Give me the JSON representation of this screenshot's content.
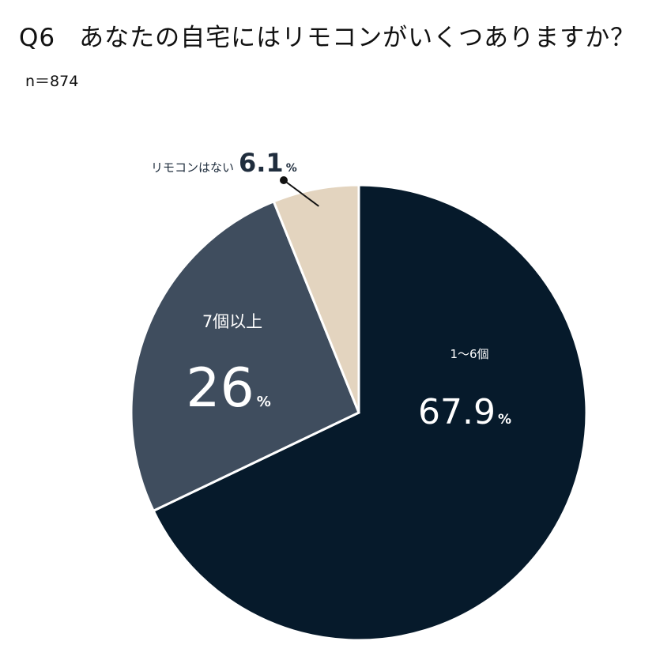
{
  "question": {
    "number": "Q6",
    "text": "あなたの自宅にはリモコンがいくつありますか？"
  },
  "sample_size": "n＝874",
  "chart_data": {
    "type": "pie",
    "unit": "%",
    "start_angle_deg": 0,
    "direction": "clockwise",
    "slices": [
      {
        "label": "1〜6個",
        "value": 67.9,
        "display": "67.9",
        "color": "#061a2b",
        "label_color": "#ffffff"
      },
      {
        "label": "7個以上",
        "value": 26,
        "display": "26",
        "color": "#3f4d5e",
        "label_color": "#ffffff"
      },
      {
        "label": "リモコンはない",
        "value": 6.1,
        "display": "6.1",
        "color": "#e3d4bf",
        "label_color": "#1f2d3d"
      }
    ]
  }
}
